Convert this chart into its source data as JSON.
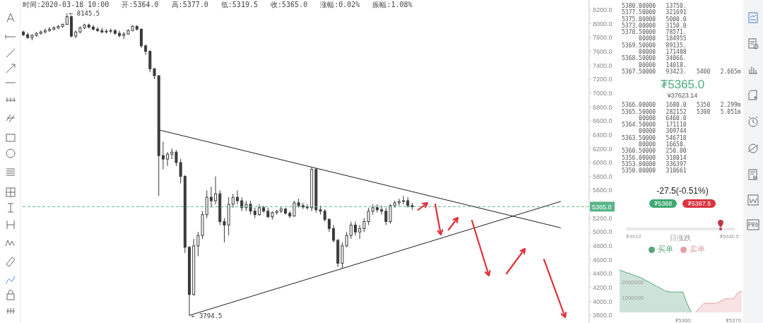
{
  "chart_data": [
    {
      "type": "candlestick",
      "subtitle": "时间:2020-03-18 10:00   开:5364.0   高:5377.0   低:5319.5   收:5365.0   涨幅:0.02%   振幅:1.08%",
      "categories": [
        null,
        null,
        null,
        null,
        null,
        null,
        null,
        null,
        null,
        null,
        null,
        null,
        null,
        null,
        null,
        null,
        null,
        null,
        null,
        null,
        null,
        null,
        null,
        null,
        null,
        null,
        null,
        null,
        null,
        null,
        null,
        null,
        null,
        null,
        null,
        null,
        null,
        null,
        null,
        null,
        null,
        null,
        null,
        null,
        null,
        null,
        null,
        null,
        null,
        null,
        null,
        null,
        null,
        null,
        null,
        null,
        null,
        null,
        null,
        null,
        null,
        null,
        null,
        null,
        null,
        null,
        null,
        null,
        null,
        null,
        null,
        null,
        null,
        null,
        null,
        null,
        null,
        null,
        null,
        null,
        null,
        null,
        null,
        null,
        null,
        null,
        null,
        null,
        null,
        null,
        null,
        null,
        null,
        null,
        null,
        null,
        null,
        null,
        null,
        null,
        null,
        null,
        null,
        null,
        null,
        null,
        null,
        null,
        null,
        null,
        null,
        null,
        null,
        null,
        null,
        null,
        null,
        null,
        null,
        null,
        null,
        null,
        null,
        null,
        null,
        null,
        null,
        null,
        null,
        null
      ],
      "color": "#3a3a3a",
      "ohlc": [
        [
          7880,
          7900,
          7820,
          7840
        ],
        [
          7840,
          7870,
          7780,
          7800
        ],
        [
          7800,
          7850,
          7760,
          7830
        ],
        [
          7830,
          7880,
          7810,
          7860
        ],
        [
          7860,
          7900,
          7840,
          7880
        ],
        [
          7880,
          7930,
          7860,
          7900
        ],
        [
          7900,
          7950,
          7880,
          7920
        ],
        [
          7920,
          7960,
          7900,
          7940
        ],
        [
          7940,
          7980,
          7920,
          7960
        ],
        [
          7960,
          8000,
          7940,
          7990
        ],
        [
          7990,
          8145.5,
          7980,
          8100
        ],
        [
          8100,
          8120,
          7800,
          7820
        ],
        [
          7820,
          7900,
          7790,
          7880
        ],
        [
          7880,
          7960,
          7860,
          7940
        ],
        [
          7940,
          8000,
          7920,
          7980
        ],
        [
          7980,
          8000,
          7930,
          7950
        ],
        [
          7950,
          7980,
          7900,
          7920
        ],
        [
          7920,
          7950,
          7880,
          7900
        ],
        [
          7900,
          7940,
          7860,
          7880
        ],
        [
          7880,
          7920,
          7860,
          7890
        ],
        [
          7890,
          7930,
          7860,
          7900
        ],
        [
          7900,
          7920,
          7840,
          7860
        ],
        [
          7860,
          7900,
          7800,
          7830
        ],
        [
          7830,
          7880,
          7780,
          7850
        ],
        [
          7850,
          7920,
          7840,
          7900
        ],
        [
          7900,
          7980,
          7890,
          7960
        ],
        [
          7960,
          7980,
          7900,
          7920
        ],
        [
          7920,
          7930,
          7650,
          7680
        ],
        [
          7680,
          7700,
          7550,
          7600
        ],
        [
          7600,
          7620,
          7300,
          7350
        ],
        [
          7350,
          7360,
          7200,
          7250
        ],
        [
          7250,
          7260,
          5520,
          6100
        ],
        [
          6100,
          6300,
          5900,
          6050
        ],
        [
          6050,
          6150,
          5950,
          6120
        ],
        [
          6120,
          6200,
          6050,
          6150
        ],
        [
          6150,
          6180,
          5950,
          6000
        ],
        [
          6000,
          6050,
          5700,
          5800
        ],
        [
          5800,
          5820,
          4700,
          4780
        ],
        [
          4780,
          4800,
          3794.5,
          4100
        ],
        [
          4100,
          4900,
          4080,
          4800
        ],
        [
          4800,
          5000,
          4650,
          4950
        ],
        [
          4950,
          5300,
          4900,
          5250
        ],
        [
          5250,
          5600,
          5200,
          5500
        ],
        [
          5500,
          5650,
          5350,
          5450
        ],
        [
          5450,
          5800,
          5400,
          5550
        ],
        [
          5550,
          5600,
          5100,
          5150
        ],
        [
          5150,
          5200,
          4850,
          5100
        ],
        [
          5100,
          5500,
          4950,
          5400
        ],
        [
          5400,
          5550,
          5350,
          5500
        ],
        [
          5500,
          5600,
          5400,
          5450
        ],
        [
          5450,
          5500,
          5300,
          5350
        ],
        [
          5350,
          5450,
          5300,
          5400
        ],
        [
          5400,
          5450,
          5250,
          5300
        ],
        [
          5300,
          5350,
          5200,
          5250
        ],
        [
          5250,
          5400,
          5230,
          5350
        ],
        [
          5350,
          5380,
          5280,
          5300
        ],
        [
          5300,
          5350,
          5200,
          5220
        ],
        [
          5220,
          5300,
          5180,
          5280
        ],
        [
          5280,
          5320,
          5250,
          5300
        ],
        [
          5300,
          5360,
          5270,
          5330
        ],
        [
          5330,
          5350,
          5250,
          5270
        ],
        [
          5270,
          5300,
          5200,
          5230
        ],
        [
          5230,
          5450,
          5220,
          5420
        ],
        [
          5420,
          5480,
          5350,
          5380
        ],
        [
          5380,
          5420,
          5330,
          5360
        ],
        [
          5360,
          5400,
          5320,
          5350
        ],
        [
          5350,
          5930,
          5300,
          5900
        ],
        [
          5900,
          5920,
          5280,
          5320
        ],
        [
          5320,
          5380,
          5250,
          5300
        ],
        [
          5300,
          5330,
          5150,
          5180
        ],
        [
          5180,
          5200,
          5000,
          5050
        ],
        [
          5050,
          5100,
          4850,
          4880
        ],
        [
          4880,
          4900,
          4500,
          4550
        ],
        [
          4550,
          4850,
          4480,
          4800
        ],
        [
          4800,
          5000,
          4780,
          4950
        ],
        [
          4950,
          5150,
          4900,
          5100
        ],
        [
          5100,
          5150,
          4950,
          5000
        ],
        [
          5000,
          5100,
          4900,
          5050
        ],
        [
          5050,
          5200,
          5000,
          5150
        ],
        [
          5150,
          5350,
          5100,
          5300
        ],
        [
          5300,
          5400,
          5250,
          5350
        ],
        [
          5350,
          5400,
          5280,
          5320
        ],
        [
          5320,
          5380,
          5250,
          5300
        ],
        [
          5300,
          5350,
          5100,
          5150
        ],
        [
          5150,
          5400,
          5120,
          5380
        ],
        [
          5380,
          5450,
          5350,
          5420
        ],
        [
          5420,
          5480,
          5380,
          5440
        ],
        [
          5440,
          5520,
          5400,
          5450
        ],
        [
          5450,
          5500,
          5350,
          5380
        ],
        [
          5380,
          5420,
          5320,
          5365
        ],
        null,
        null,
        null,
        null,
        null,
        null,
        null,
        null,
        null,
        null,
        null,
        null,
        null,
        null,
        null,
        null,
        null,
        null,
        null,
        null,
        null,
        null,
        null,
        null,
        null,
        null,
        null,
        null,
        null,
        null,
        null,
        null,
        null,
        null,
        null,
        null,
        null,
        null,
        null,
        null
      ],
      "series": [
        {
          "type": "line",
          "color": "#1e1e1e",
          "values": [
            null,
            null,
            null,
            null,
            null,
            null,
            null,
            null,
            null,
            null,
            null,
            null,
            null,
            null,
            null,
            null,
            null,
            null,
            null,
            null,
            null,
            null,
            null,
            null,
            null,
            null,
            null,
            null,
            null,
            null,
            null,
            6470,
            null,
            null,
            null,
            null,
            null,
            null,
            null,
            null,
            null,
            null,
            null,
            null,
            null,
            null,
            null,
            null,
            null,
            null,
            null,
            null,
            null,
            null,
            null,
            null,
            null,
            null,
            null,
            null,
            null,
            null,
            null,
            null,
            null,
            null,
            null,
            null,
            null,
            null,
            null,
            null,
            null,
            null,
            null,
            null,
            null,
            null,
            null,
            null,
            null,
            null,
            null,
            null,
            null,
            null,
            null,
            null,
            null,
            null,
            null,
            null,
            null,
            null,
            null,
            null,
            null,
            null,
            null,
            null,
            null,
            null,
            null,
            null,
            null,
            null,
            null,
            null,
            null,
            null,
            null,
            null,
            null,
            null,
            null,
            null,
            null,
            null,
            null,
            null,
            null,
            null,
            null,
            5060,
            null,
            null,
            null,
            null,
            null,
            null
          ]
        },
        {
          "type": "line",
          "color": "#1e1e1e",
          "values": [
            null,
            null,
            null,
            null,
            null,
            null,
            null,
            null,
            null,
            null,
            null,
            null,
            null,
            null,
            null,
            null,
            null,
            null,
            null,
            null,
            null,
            null,
            null,
            null,
            null,
            null,
            null,
            null,
            null,
            null,
            null,
            null,
            null,
            null,
            null,
            null,
            null,
            null,
            3800,
            null,
            null,
            null,
            null,
            null,
            null,
            null,
            null,
            null,
            null,
            null,
            null,
            null,
            null,
            null,
            null,
            null,
            null,
            null,
            null,
            null,
            null,
            null,
            null,
            null,
            null,
            null,
            null,
            null,
            null,
            null,
            null,
            null,
            null,
            null,
            null,
            null,
            null,
            null,
            null,
            null,
            null,
            null,
            null,
            null,
            null,
            null,
            null,
            null,
            null,
            null,
            null,
            null,
            null,
            null,
            null,
            null,
            null,
            null,
            null,
            null,
            null,
            null,
            null,
            null,
            null,
            null,
            null,
            null,
            null,
            null,
            null,
            null,
            null,
            null,
            null,
            null,
            null,
            null,
            null,
            null,
            null,
            null,
            null,
            5440,
            null,
            null,
            null,
            null,
            null,
            null
          ]
        }
      ],
      "ylim": [
        3690,
        8340
      ],
      "yticks": [
        {
          "value": 3800,
          "label": "3800.0"
        },
        {
          "value": 4000,
          "label": "4000.0"
        },
        {
          "value": 4200,
          "label": "4200.0"
        },
        {
          "value": 4400,
          "label": "4400.0"
        },
        {
          "value": 4600,
          "label": "4600.0"
        },
        {
          "value": 4800,
          "label": "4800.0"
        },
        {
          "value": 5000,
          "label": "5000.0"
        },
        {
          "value": 5200,
          "label": "5200.0"
        },
        {
          "value": 5600,
          "label": "5600.0"
        },
        {
          "value": 5800,
          "label": "5800.0"
        },
        {
          "value": 6000,
          "label": "6000.0"
        },
        {
          "value": 6200,
          "label": "6200.0"
        },
        {
          "value": 6400,
          "label": "6400.0"
        },
        {
          "value": 6600,
          "label": "6600.0"
        },
        {
          "value": 6800,
          "label": "6800.0"
        },
        {
          "value": 7000,
          "label": "7000.0"
        },
        {
          "value": 7200,
          "label": "7200.0"
        },
        {
          "value": 7400,
          "label": "7400.0"
        },
        {
          "value": 7600,
          "label": "7600.0"
        },
        {
          "value": 7800,
          "label": "7800.0"
        },
        {
          "value": 8000,
          "label": "8000.0"
        },
        {
          "value": 8200,
          "label": "8200.0"
        }
      ],
      "tick_labels": "y",
      "ref_lines": [
        {
          "axis": "y",
          "value": 5365,
          "label": "5365.0",
          "color": "#5bb58a",
          "line_style": "dashed"
        }
      ],
      "annotations": [
        "← 8145.5",
        "← 3794.5"
      ]
    },
    {
      "type": "other",
      "annotations": [
        "5380.00000   13750.",
        "5377.50000   321691",
        "5375.00000   5000.0",
        "5373.00000   3150.0",
        "5370.50000   78571.",
        "     00000   184955",
        "5369.50000   89135.",
        "     00000   171488",
        "5368.50000   34066.",
        "     00000   14018.",
        "5367.50000   93423.   5400   2.665m",
        "₮5365.0",
        "¥37623.14",
        "5366.00000   1680.0   5350   2.299m",
        "5365.50000   282152   5300   5.051m",
        "     00000   6460.0",
        "5364.50000   171110",
        "     00000   309744",
        "5363.50000   546718",
        "     00000   16658.",
        "5360.50000   250.00",
        "5356.00000   318014",
        "5353.00000   336397",
        "5350.00000   310661",
        "-27.5(-0.51%)",
        "₮5368",
        "₮5387.5",
        "₮4919",
        "日涨跌",
        "₮5440.5"
      ]
    },
    {
      "type": "area",
      "categories": [
        null,
        null,
        null,
        null,
        null,
        null,
        null,
        null,
        null,
        null,
        null,
        null,
        null,
        null,
        null,
        "₮5360",
        null,
        null,
        null,
        null,
        null,
        null,
        null,
        null,
        null,
        null,
        null,
        "₮5370",
        null,
        null
      ],
      "series": [
        {
          "name": "买单",
          "color": "#5aa37f",
          "values": [
            2800000,
            2700000,
            2600000,
            2500000,
            2400000,
            2300000,
            2150000,
            2000000,
            1850000,
            1700000,
            1550000,
            1400000,
            1350000,
            1350000,
            1350000,
            1350000,
            600000,
            0,
            null,
            null,
            null,
            null,
            null,
            null,
            null,
            null,
            null,
            null,
            null,
            null
          ]
        },
        {
          "name": "卖单",
          "color": "#e3a0a6",
          "values": [
            null,
            null,
            null,
            null,
            null,
            null,
            null,
            null,
            null,
            null,
            null,
            null,
            null,
            null,
            null,
            null,
            null,
            null,
            0,
            300000,
            600000,
            600000,
            600000,
            600000,
            750000,
            900000,
            900000,
            900000,
            1300000,
            1400000
          ]
        }
      ],
      "ylim": [
        0,
        2900000
      ],
      "yticks": [
        1000000,
        2000000
      ],
      "legend": "top"
    }
  ]
}
